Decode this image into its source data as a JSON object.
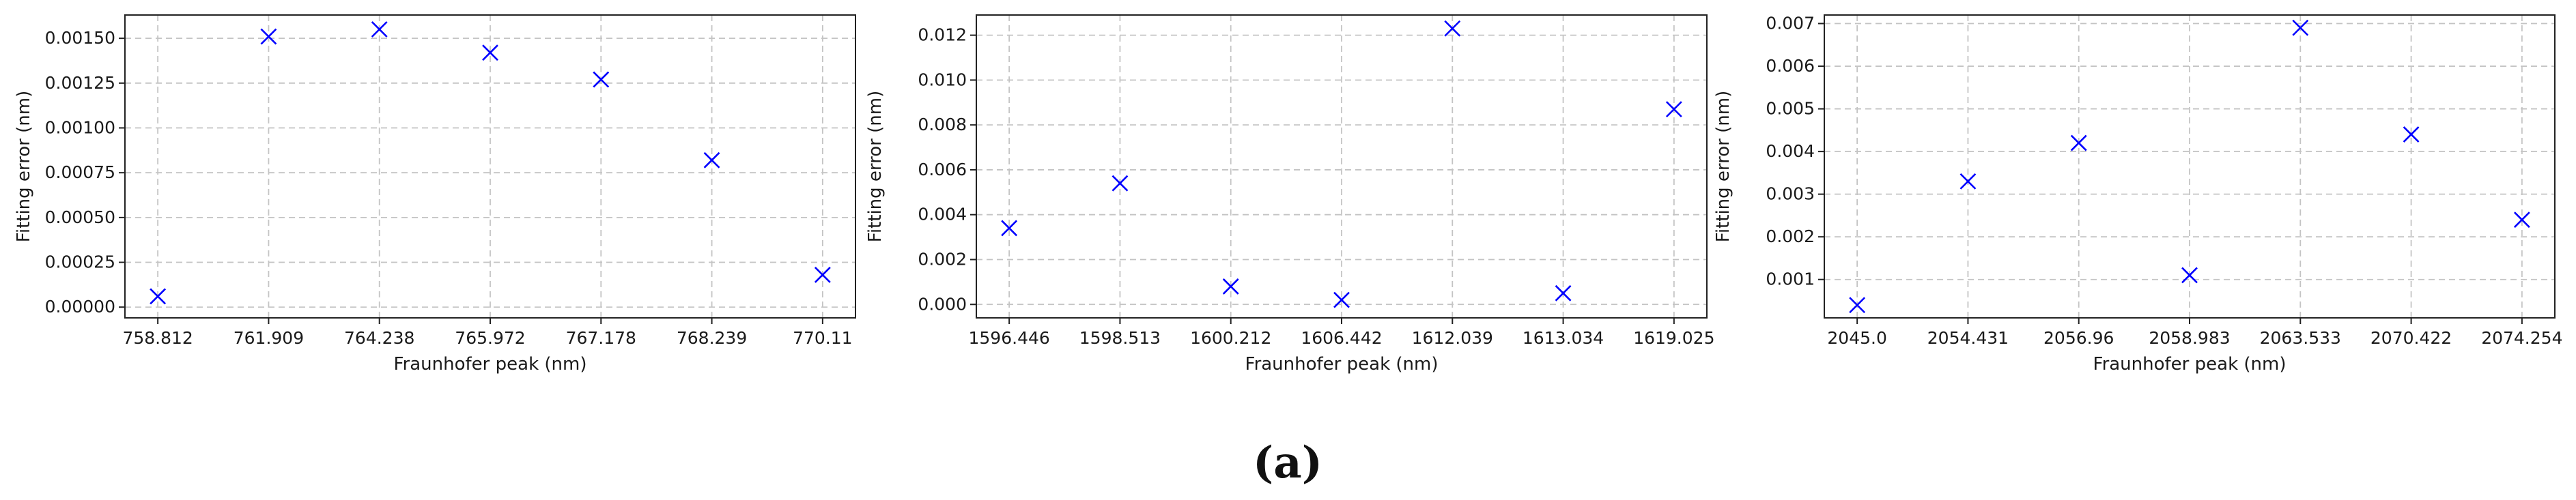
{
  "caption": "(a)",
  "chart_data": [
    {
      "type": "scatter",
      "x": [
        "758.812",
        "761.909",
        "764.238",
        "765.972",
        "767.178",
        "768.239",
        "770.11"
      ],
      "y": [
        6e-05,
        0.00151,
        0.00155,
        0.00142,
        0.00127,
        0.00082,
        0.00018
      ],
      "xlabel": "Fraunhofer peak (nm)",
      "ylabel": "Fitting error (nm)",
      "ylim": [
        -6e-05,
        0.00163
      ],
      "yticks": [
        "0.00000",
        "0.00025",
        "0.00050",
        "0.00075",
        "0.00100",
        "0.00125",
        "0.00150"
      ],
      "ytick_values": [
        0,
        0.00025,
        0.0005,
        0.00075,
        0.001,
        0.00125,
        0.0015
      ],
      "marker": "x",
      "marker_color": "#0000ff",
      "grid": true
    },
    {
      "type": "scatter",
      "x": [
        "1596.446",
        "1598.513",
        "1600.212",
        "1606.442",
        "1612.039",
        "1613.034",
        "1619.025"
      ],
      "y": [
        0.0034,
        0.0054,
        0.0008,
        0.0002,
        0.0123,
        0.0005,
        0.0087
      ],
      "xlabel": "Fraunhofer peak (nm)",
      "ylabel": "Fitting error (nm)",
      "ylim": [
        -0.0006,
        0.0129
      ],
      "yticks": [
        "0.000",
        "0.002",
        "0.004",
        "0.006",
        "0.008",
        "0.010",
        "0.012"
      ],
      "ytick_values": [
        0,
        0.002,
        0.004,
        0.006,
        0.008,
        0.01,
        0.012
      ],
      "marker": "x",
      "marker_color": "#0000ff",
      "grid": true
    },
    {
      "type": "scatter",
      "x": [
        "2045.0",
        "2054.431",
        "2056.96",
        "2058.983",
        "2063.533",
        "2070.422",
        "2074.254"
      ],
      "y": [
        0.0004,
        0.0033,
        0.0042,
        0.0011,
        0.0069,
        0.0044,
        0.0024
      ],
      "xlabel": "Fraunhofer peak (nm)",
      "ylabel": "Fitting error (nm)",
      "ylim": [
        0.0001,
        0.0072
      ],
      "yticks": [
        "0.001",
        "0.002",
        "0.003",
        "0.004",
        "0.005",
        "0.006",
        "0.007"
      ],
      "ytick_values": [
        0.001,
        0.002,
        0.003,
        0.004,
        0.005,
        0.006,
        0.007
      ],
      "marker": "x",
      "marker_color": "#0000ff",
      "grid": true
    }
  ]
}
